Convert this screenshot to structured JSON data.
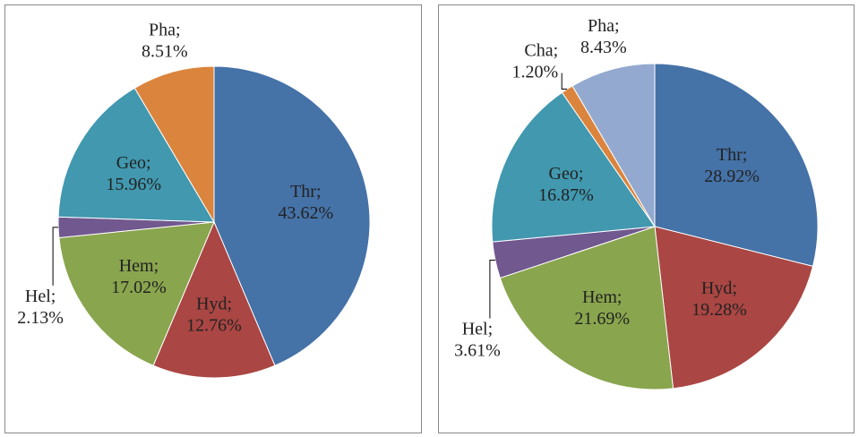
{
  "chart_data": [
    {
      "type": "pie",
      "categories": [
        "Thr;",
        "Hyd;",
        "Hem;",
        "Hel;",
        "Geo;",
        "Pha;"
      ],
      "values": [
        43.62,
        12.76,
        17.02,
        2.13,
        15.96,
        8.51
      ],
      "value_labels": [
        "43.62%",
        "12.76%",
        "17.02%",
        "2.13%",
        "15.96%",
        "8.51%"
      ],
      "colors": [
        "#4572a7",
        "#aa4643",
        "#89a54e",
        "#71588f",
        "#4198af",
        "#db843d"
      ]
    },
    {
      "type": "pie",
      "categories": [
        "Thr;",
        "Hyd;",
        "Hem;",
        "Hel;",
        "Geo;",
        "Cha;",
        "Pha;"
      ],
      "values": [
        28.92,
        19.28,
        21.69,
        3.61,
        16.87,
        1.2,
        8.43
      ],
      "value_labels": [
        "28.92%",
        "19.28%",
        "21.69%",
        "3.61%",
        "16.87%",
        "1.20%",
        "8.43%"
      ],
      "colors": [
        "#4572a7",
        "#aa4643",
        "#89a54e",
        "#71588f",
        "#4198af",
        "#db843d",
        "#93a9cf"
      ]
    }
  ]
}
